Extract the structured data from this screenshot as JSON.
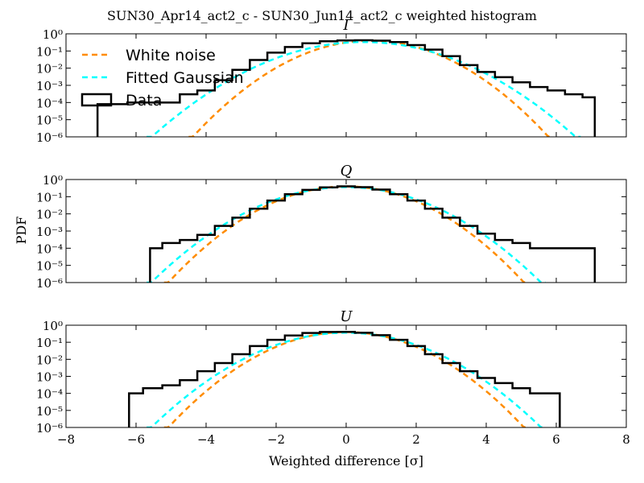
{
  "figure": {
    "title": "SUN30_Apr14_act2_c - SUN30_Jun14_act2_c weighted histogram",
    "ylabel": "PDF",
    "xlabel": "Weighted difference [σ]"
  },
  "legend": {
    "placement": "top-left of first panel",
    "items": [
      {
        "label": "White noise",
        "style": "dashed",
        "color": "#ff8c00"
      },
      {
        "label": "Fitted Gaussian",
        "style": "dashed",
        "color": "#00ffff"
      },
      {
        "label": "Data",
        "style": "step",
        "color": "#000000"
      }
    ]
  },
  "colors": {
    "white_noise": "#ff8c00",
    "fitted_gaussian": "#00ffff",
    "data": "#000000"
  },
  "chart_data": [
    {
      "type": "line",
      "title": "I",
      "xlim": [
        -8,
        8
      ],
      "ylim": [
        1e-06,
        1
      ],
      "yscale": "log",
      "xticks": [
        "−8",
        "−6",
        "−4",
        "−2",
        "0",
        "2",
        "4",
        "6",
        "8"
      ],
      "yticks": [
        "10⁻⁶",
        "10⁻⁵",
        "10⁻⁴",
        "10⁻³",
        "10⁻²",
        "10⁻¹",
        "10⁰"
      ],
      "series": [
        {
          "name": "White noise",
          "kind": "gaussian",
          "mu": 0.7,
          "sigma": 1.0
        },
        {
          "name": "Fitted Gaussian",
          "kind": "gaussian",
          "mu": 0.5,
          "sigma": 1.2
        },
        {
          "name": "Data",
          "kind": "histogram",
          "x": [
            -7.0,
            -6.5,
            -6.0,
            -5.5,
            -5.0,
            -4.5,
            -4.0,
            -3.5,
            -3.0,
            -2.5,
            -2.0,
            -1.5,
            -1.0,
            -0.5,
            0.0,
            0.5,
            1.0,
            1.5,
            2.0,
            2.5,
            3.0,
            3.5,
            4.0,
            4.5,
            5.0,
            5.5,
            6.0,
            6.5,
            7.0
          ],
          "y": [
            8e-05,
            8e-05,
            0.0001,
            0.0001,
            0.0001,
            0.0003,
            0.0005,
            0.002,
            0.008,
            0.03,
            0.08,
            0.17,
            0.28,
            0.37,
            0.41,
            0.42,
            0.4,
            0.33,
            0.22,
            0.12,
            0.05,
            0.015,
            0.006,
            0.003,
            0.0015,
            0.0008,
            0.0005,
            0.0003,
            0.0002
          ]
        }
      ]
    },
    {
      "type": "line",
      "title": "Q",
      "xlim": [
        -8,
        8
      ],
      "ylim": [
        1e-06,
        1
      ],
      "yscale": "log",
      "xticks": [
        "−8",
        "−6",
        "−4",
        "−2",
        "0",
        "2",
        "4",
        "6",
        "8"
      ],
      "yticks": [
        "10⁻⁶",
        "10⁻⁵",
        "10⁻⁴",
        "10⁻³",
        "10⁻²",
        "10⁻¹",
        "10⁰"
      ],
      "series": [
        {
          "name": "White noise",
          "kind": "gaussian",
          "mu": 0.0,
          "sigma": 1.0
        },
        {
          "name": "Fitted Gaussian",
          "kind": "gaussian",
          "mu": 0.0,
          "sigma": 1.1
        },
        {
          "name": "Data",
          "kind": "histogram",
          "x": [
            -5.5,
            -5.0,
            -4.5,
            -4.0,
            -3.5,
            -3.0,
            -2.5,
            -2.0,
            -1.5,
            -1.0,
            -0.5,
            0.0,
            0.5,
            1.0,
            1.5,
            2.0,
            2.5,
            3.0,
            3.5,
            4.0,
            4.5,
            5.0,
            5.5,
            6.0,
            6.5,
            7.0
          ],
          "y": [
            0.0001,
            0.0002,
            0.0003,
            0.0006,
            0.002,
            0.006,
            0.02,
            0.06,
            0.14,
            0.25,
            0.35,
            0.4,
            0.36,
            0.26,
            0.14,
            0.06,
            0.02,
            0.006,
            0.002,
            0.0007,
            0.0003,
            0.0002,
            0.0001,
            0.0001,
            0.0001,
            0.0001
          ]
        }
      ]
    },
    {
      "type": "line",
      "title": "U",
      "xlim": [
        -8,
        8
      ],
      "ylim": [
        1e-06,
        1
      ],
      "yscale": "log",
      "xticks": [
        "−8",
        "−6",
        "−4",
        "−2",
        "0",
        "2",
        "4",
        "6",
        "8"
      ],
      "yticks": [
        "10⁻⁶",
        "10⁻⁵",
        "10⁻⁴",
        "10⁻³",
        "10⁻²",
        "10⁻¹",
        "10⁰"
      ],
      "series": [
        {
          "name": "White noise",
          "kind": "gaussian",
          "mu": 0.0,
          "sigma": 1.0
        },
        {
          "name": "Fitted Gaussian",
          "kind": "gaussian",
          "mu": 0.0,
          "sigma": 1.1
        },
        {
          "name": "Data",
          "kind": "histogram",
          "x": [
            -6.1,
            -5.5,
            -5.0,
            -4.5,
            -4.0,
            -3.5,
            -3.0,
            -2.5,
            -2.0,
            -1.5,
            -1.0,
            -0.5,
            0.0,
            0.5,
            1.0,
            1.5,
            2.0,
            2.5,
            3.0,
            3.5,
            4.0,
            4.5,
            5.0,
            5.5,
            6.0
          ],
          "y": [
            0.0001,
            0.0002,
            0.0003,
            0.0006,
            0.002,
            0.006,
            0.02,
            0.06,
            0.14,
            0.25,
            0.35,
            0.4,
            0.41,
            0.36,
            0.26,
            0.14,
            0.06,
            0.02,
            0.006,
            0.002,
            0.0008,
            0.0004,
            0.0002,
            0.0001,
            0.0001
          ]
        }
      ]
    }
  ]
}
